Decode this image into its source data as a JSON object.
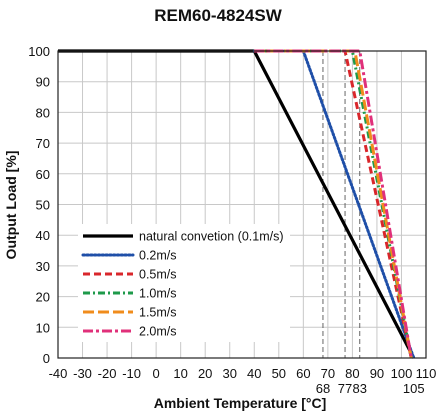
{
  "chart_data": {
    "type": "line",
    "title": "REM60-4824SW",
    "xlabel": "Ambient Temperature [°C]",
    "ylabel": "Output Load [%]",
    "xlim": [
      -40,
      110
    ],
    "ylim": [
      0,
      100
    ],
    "x_ticks": [
      -40,
      -30,
      -20,
      -10,
      0,
      10,
      20,
      30,
      40,
      50,
      60,
      70,
      80,
      90,
      100,
      110
    ],
    "x_tick_labels": [
      "-40",
      "-30",
      "-20",
      "-10",
      "0",
      "10",
      "20",
      "30",
      "40",
      "50",
      "60",
      "70",
      "80",
      "90",
      "100",
      "110"
    ],
    "y_ticks": [
      0,
      10,
      20,
      30,
      40,
      50,
      60,
      70,
      80,
      90,
      100
    ],
    "y_tick_labels": [
      "0",
      "10",
      "20",
      "30",
      "40",
      "50",
      "60",
      "70",
      "80",
      "90",
      "100"
    ],
    "extra_x_labels": [
      {
        "x": 68,
        "label": "68"
      },
      {
        "x": 77,
        "label": "77"
      },
      {
        "x": 83,
        "label": "83"
      },
      {
        "x": 105,
        "label": "105"
      }
    ],
    "reference_lines_x": [
      68,
      77,
      83
    ],
    "grid": true,
    "legend_position": "lower-left",
    "series": [
      {
        "name": "natural convetion (0.1m/s)",
        "color": "#000000",
        "dash": "solid",
        "x": [
          -40,
          40,
          105
        ],
        "y": [
          100,
          100,
          0
        ]
      },
      {
        "name": "0.2m/s",
        "color": "#1f4fa8",
        "dash": "dotted",
        "x": [
          40,
          60,
          105
        ],
        "y": [
          100,
          100,
          0
        ]
      },
      {
        "name": "0.5m/s",
        "color": "#d9262b",
        "dash": "dashed",
        "x": [
          40,
          77,
          104
        ],
        "y": [
          100,
          100,
          0
        ]
      },
      {
        "name": "1.0m/s",
        "color": "#1e9a4a",
        "dash": "dashdot",
        "x": [
          40,
          80,
          104
        ],
        "y": [
          100,
          100,
          0
        ]
      },
      {
        "name": "1.5m/s",
        "color": "#f08c1c",
        "dash": "longdash",
        "x": [
          40,
          81,
          104
        ],
        "y": [
          100,
          100,
          0
        ]
      },
      {
        "name": "2.0m/s",
        "color": "#e0307a",
        "dash": "dashdotlong",
        "x": [
          40,
          83,
          104
        ],
        "y": [
          100,
          100,
          0
        ]
      }
    ]
  }
}
